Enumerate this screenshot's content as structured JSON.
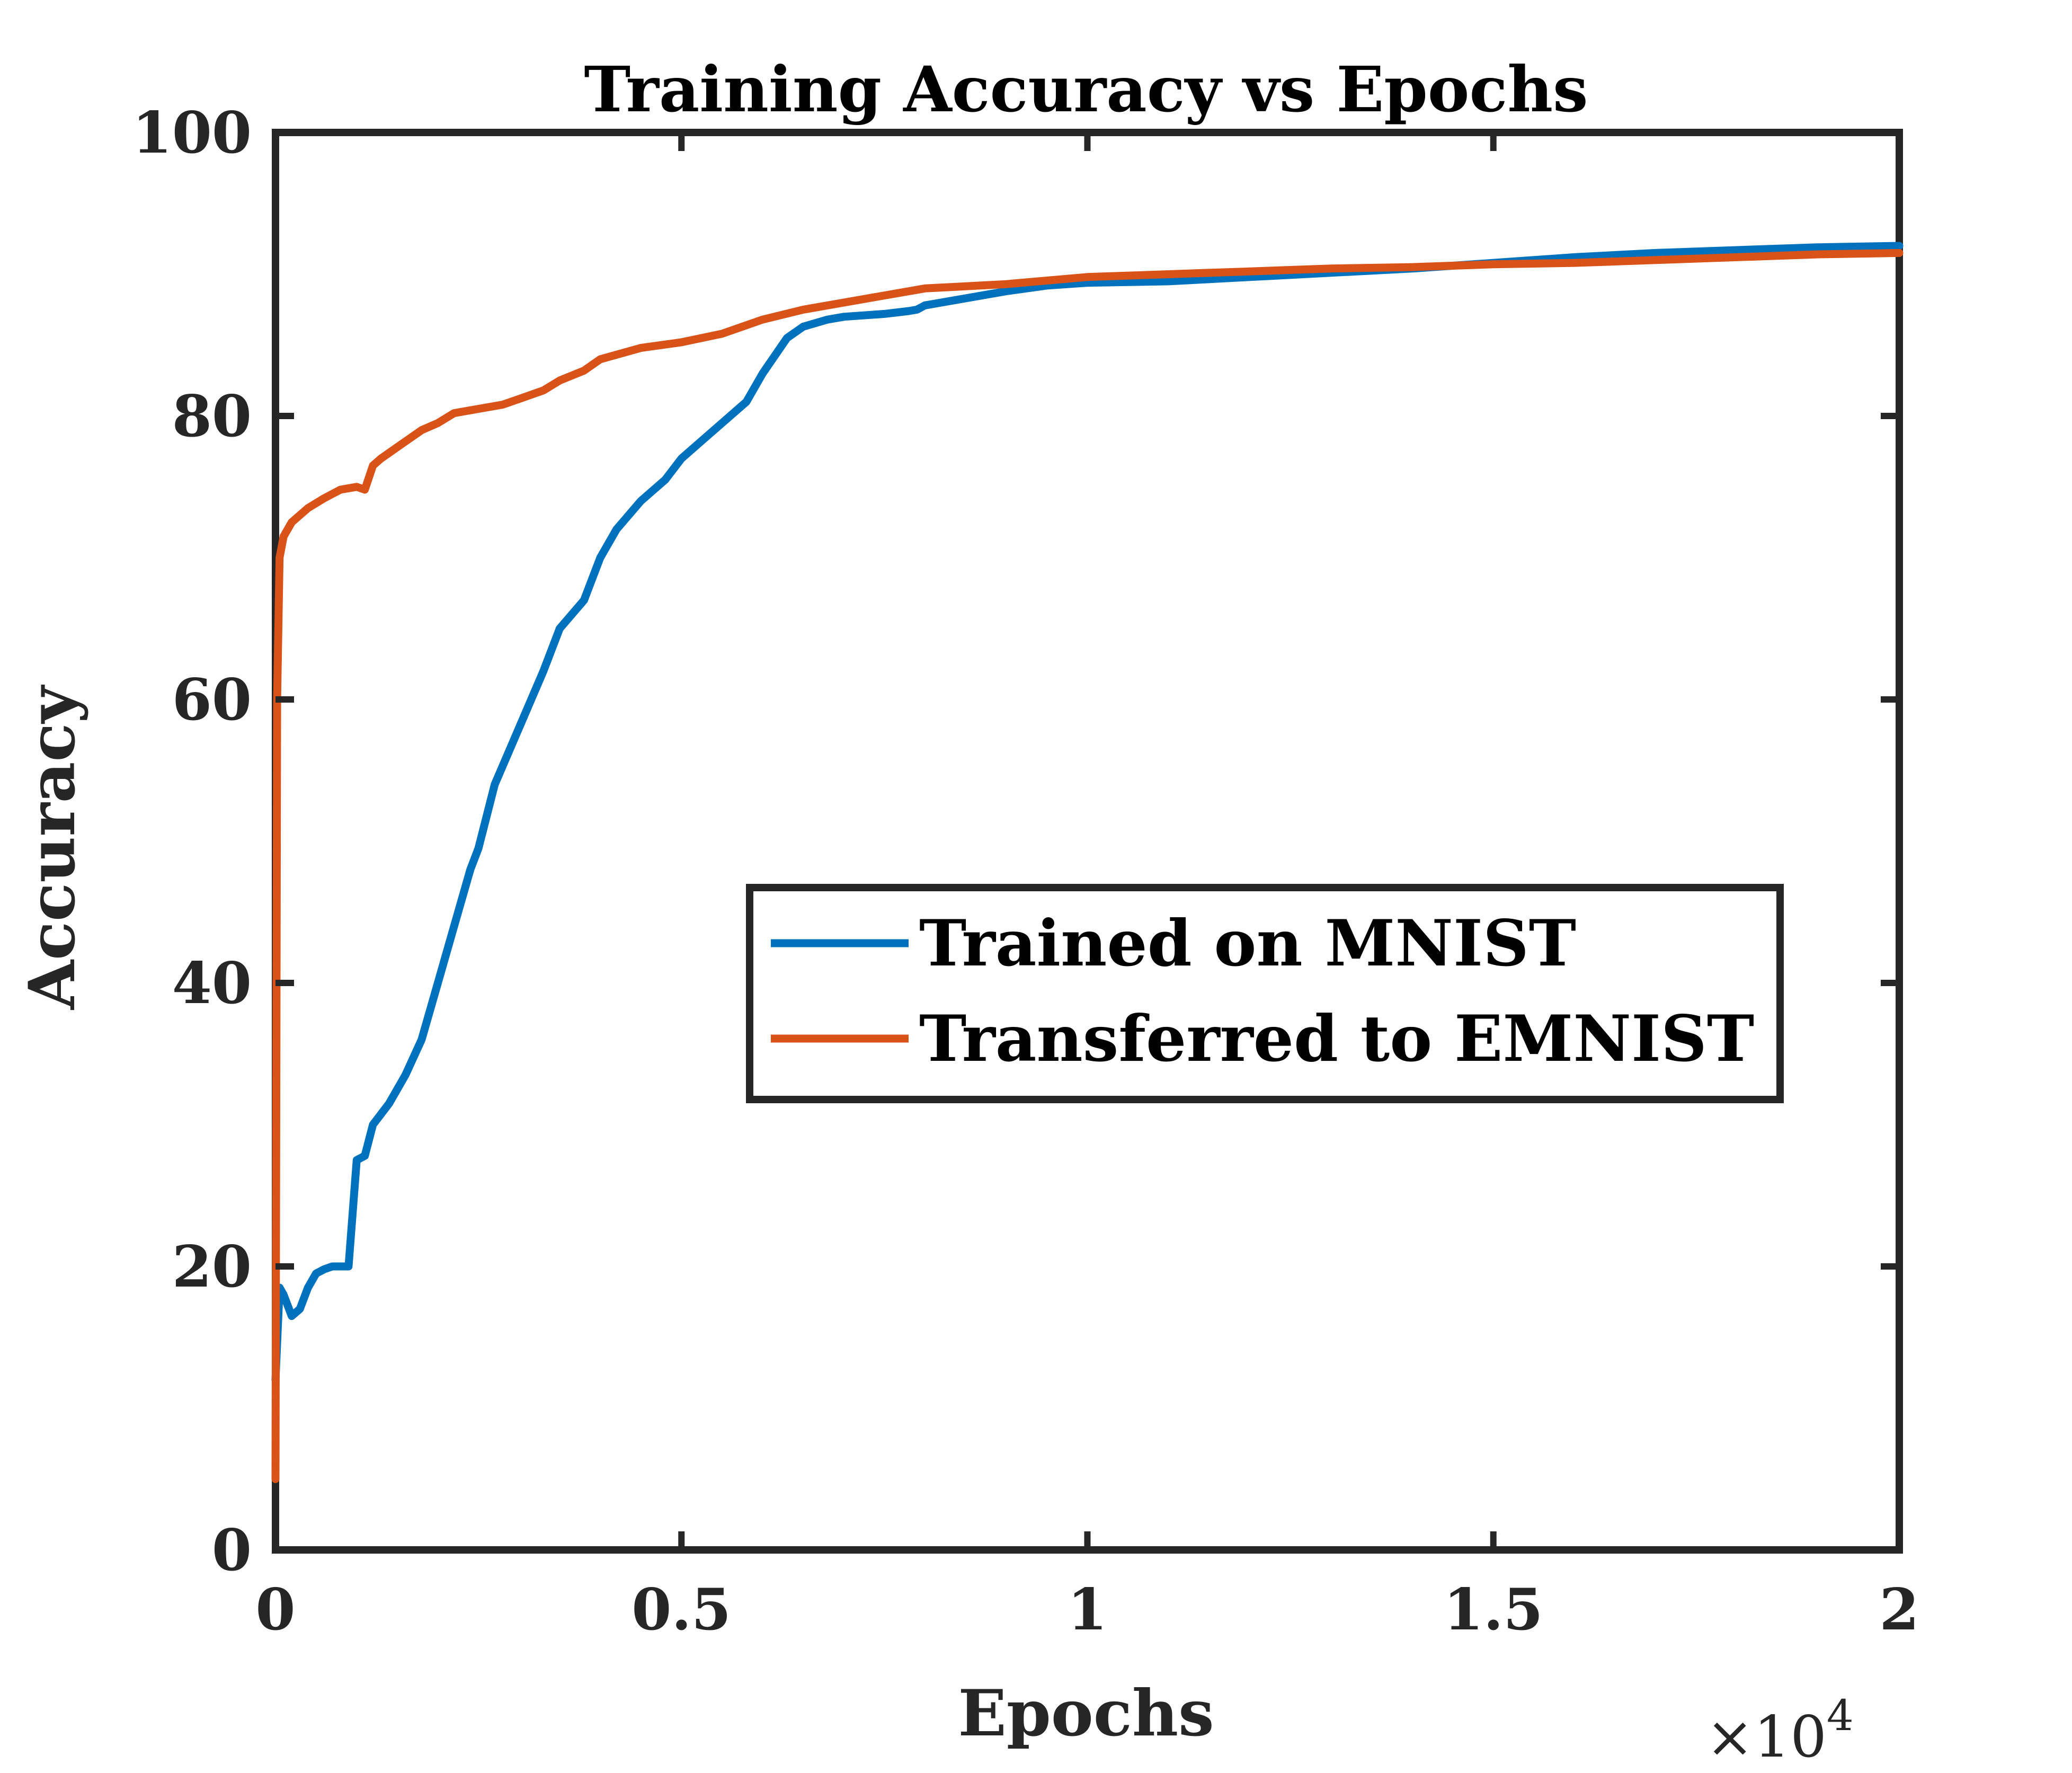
{
  "chart_data": {
    "type": "line",
    "title": "Training Accuracy vs Epochs",
    "xlabel": "Epochs",
    "ylabel": "Accuracy",
    "x_exponent_base": "×10",
    "x_exponent_power": "4",
    "xlim": [
      0,
      2
    ],
    "ylim": [
      0,
      100
    ],
    "x_ticks": [
      0,
      0.5,
      1,
      1.5,
      2
    ],
    "x_tick_labels": [
      "0",
      "0.5",
      "1",
      "1.5",
      "2"
    ],
    "y_ticks": [
      0,
      20,
      40,
      60,
      80,
      100
    ],
    "y_tick_labels": [
      "0",
      "20",
      "40",
      "60",
      "80",
      "100"
    ],
    "grid": false,
    "legend_position": "center-right",
    "series": [
      {
        "name": "Trained on MNIST",
        "color": "#0072BD",
        "x": [
          0,
          0.005,
          0.01,
          0.02,
          0.03,
          0.04,
          0.05,
          0.06,
          0.07,
          0.08,
          0.09,
          0.1,
          0.11,
          0.12,
          0.14,
          0.16,
          0.18,
          0.2,
          0.22,
          0.24,
          0.25,
          0.27,
          0.3,
          0.33,
          0.35,
          0.38,
          0.4,
          0.42,
          0.45,
          0.48,
          0.5,
          0.52,
          0.55,
          0.58,
          0.6,
          0.63,
          0.65,
          0.68,
          0.7,
          0.75,
          0.78,
          0.79,
          0.8,
          0.82,
          0.85,
          0.9,
          0.95,
          1.0,
          1.1,
          1.2,
          1.3,
          1.4,
          1.5,
          1.6,
          1.7,
          1.8,
          1.9,
          2.0
        ],
        "y": [
          12,
          18.5,
          18,
          16.5,
          17,
          18.5,
          19.5,
          19.8,
          20,
          20,
          20,
          27.5,
          27.8,
          30,
          31.5,
          33.5,
          36,
          40,
          44,
          48,
          49.5,
          54,
          58,
          62,
          65,
          67,
          70,
          72,
          74,
          75.5,
          77,
          78,
          79.5,
          81,
          83,
          85.5,
          86.3,
          86.8,
          87,
          87.2,
          87.4,
          87.5,
          87.8,
          88,
          88.3,
          88.8,
          89.2,
          89.4,
          89.5,
          89.8,
          90.1,
          90.4,
          90.8,
          91.2,
          91.5,
          91.7,
          91.9,
          92
        ]
      },
      {
        "name": "Transferred to EMNIST",
        "color": "#D95319",
        "x": [
          0,
          0.002,
          0.005,
          0.01,
          0.02,
          0.04,
          0.06,
          0.08,
          0.1,
          0.11,
          0.12,
          0.13,
          0.15,
          0.18,
          0.2,
          0.22,
          0.25,
          0.28,
          0.3,
          0.33,
          0.35,
          0.38,
          0.4,
          0.45,
          0.5,
          0.55,
          0.6,
          0.65,
          0.7,
          0.75,
          0.8,
          0.9,
          1.0,
          1.1,
          1.2,
          1.3,
          1.4,
          1.5,
          1.6,
          1.7,
          1.8,
          1.9,
          2.0
        ],
        "y": [
          5,
          60,
          70,
          71.5,
          72.5,
          73.5,
          74.2,
          74.8,
          75,
          74.8,
          76.5,
          77,
          77.8,
          79,
          79.5,
          80.2,
          80.5,
          80.8,
          81.2,
          81.8,
          82.5,
          83.2,
          84,
          84.8,
          85.2,
          85.8,
          86.8,
          87.5,
          88,
          88.5,
          89,
          89.3,
          89.8,
          90,
          90.2,
          90.4,
          90.5,
          90.7,
          90.8,
          91,
          91.2,
          91.4,
          91.5
        ]
      }
    ]
  }
}
